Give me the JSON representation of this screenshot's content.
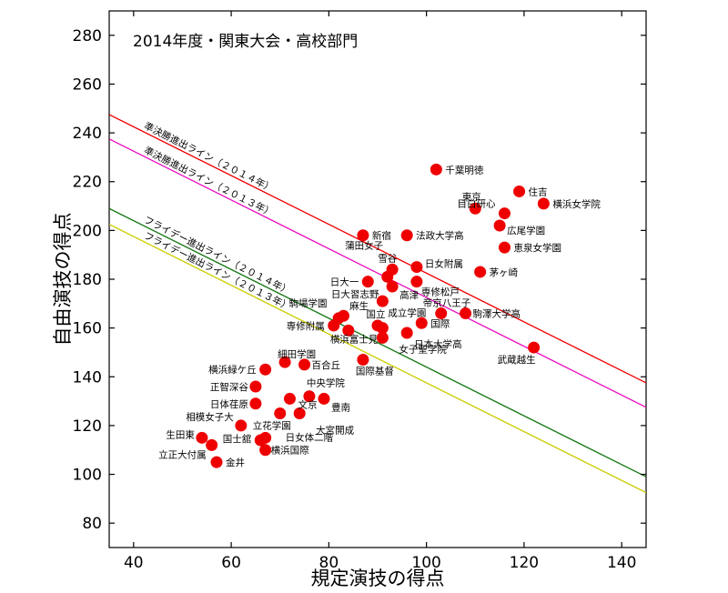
{
  "chart_data": {
    "type": "scatter",
    "title": "2014年度・関東大会・高校部門",
    "xlabel": "規定演技の得点",
    "ylabel": "自由演技の得点",
    "xlim": [
      35,
      145
    ],
    "ylim": [
      70,
      290
    ],
    "xticks": [
      40,
      60,
      80,
      100,
      120,
      140
    ],
    "yticks": [
      80,
      100,
      120,
      140,
      160,
      180,
      200,
      220,
      240,
      260,
      280
    ],
    "grid": false,
    "point_color": "#ee0000",
    "lines": [
      {
        "name": "準決勝進出ライン（２０１４年）",
        "color": "#ee0000",
        "x": [
          35,
          145
        ],
        "y": [
          247.5,
          137.5
        ]
      },
      {
        "name": "準決勝進出ライン（２０１３年）",
        "color": "#ee00bb",
        "x": [
          35,
          145
        ],
        "y": [
          237.5,
          127.5
        ]
      },
      {
        "name": "フライデー進出ライン（２０１４年）",
        "color": "#117711",
        "x": [
          35,
          145
        ],
        "y": [
          209,
          99
        ]
      },
      {
        "name": "フライデー進出ライン（２０１３年）",
        "color": "#cccc00",
        "x": [
          35,
          145
        ],
        "y": [
          202.5,
          92.5
        ]
      }
    ],
    "points": [
      {
        "label": "千葉明徳",
        "x": 102,
        "y": 225
      },
      {
        "label": "住吉",
        "x": 119,
        "y": 216
      },
      {
        "label": "横浜女学院",
        "x": 124,
        "y": 211
      },
      {
        "label": "東京",
        "x": 110,
        "y": 209
      },
      {
        "label": "目白研心",
        "x": 116,
        "y": 207
      },
      {
        "label": "広尾学園",
        "x": 115,
        "y": 202
      },
      {
        "label": "新宿",
        "x": 87,
        "y": 198
      },
      {
        "label": "法政大学高",
        "x": 96,
        "y": 198
      },
      {
        "label": "恵泉女学園",
        "x": 116,
        "y": 193
      },
      {
        "label": "蒲田女子",
        "x": 93,
        "y": 184
      },
      {
        "label": "雪谷",
        "x": 92,
        "y": 181
      },
      {
        "label": "日女附属",
        "x": 98,
        "y": 185
      },
      {
        "label": "茅ヶ崎",
        "x": 111,
        "y": 183
      },
      {
        "label": "日大一",
        "x": 88,
        "y": 179
      },
      {
        "label": "高津",
        "x": 93,
        "y": 177
      },
      {
        "label": "専修松戸",
        "x": 98,
        "y": 179
      },
      {
        "label": "日大習志野",
        "x": 91,
        "y": 171
      },
      {
        "label": "帝京八王子",
        "x": 103,
        "y": 166
      },
      {
        "label": "駒澤大学高",
        "x": 108,
        "y": 166
      },
      {
        "label": "駒場学園",
        "x": 83,
        "y": 165
      },
      {
        "label": "麻生",
        "x": 82,
        "y": 164
      },
      {
        "label": "国立",
        "x": 90,
        "y": 161
      },
      {
        "label": "成立学園",
        "x": 91,
        "y": 160
      },
      {
        "label": "国際",
        "x": 99,
        "y": 162
      },
      {
        "label": "専修附属",
        "x": 81,
        "y": 161
      },
      {
        "label": "横浜富士見",
        "x": 84,
        "y": 159
      },
      {
        "label": "日本大学高",
        "x": 96,
        "y": 158
      },
      {
        "label": "女子聖学院",
        "x": 91,
        "y": 156
      },
      {
        "label": "武蔵越生",
        "x": 122,
        "y": 152
      },
      {
        "label": "細田学園",
        "x": 71,
        "y": 146
      },
      {
        "label": "百合丘",
        "x": 75,
        "y": 145
      },
      {
        "label": "国際基督",
        "x": 87,
        "y": 147
      },
      {
        "label": "横浜緑ケ丘",
        "x": 67,
        "y": 143
      },
      {
        "label": "正智深谷",
        "x": 65,
        "y": 136
      },
      {
        "label": "中央学院",
        "x": 76,
        "y": 132
      },
      {
        "label": "日体荏原",
        "x": 65,
        "y": 129
      },
      {
        "label": "豊南",
        "x": 79,
        "y": 131
      },
      {
        "label": "文京",
        "x": 72,
        "y": 131
      },
      {
        "label": "大宮開成",
        "x": 74,
        "y": 125
      },
      {
        "label": "立花学園",
        "x": 70,
        "y": 125
      },
      {
        "label": "相模女子大",
        "x": 62,
        "y": 120
      },
      {
        "label": "生田東",
        "x": 54,
        "y": 115
      },
      {
        "label": "日女体二階",
        "x": 67,
        "y": 115
      },
      {
        "label": "国士舘",
        "x": 66,
        "y": 114
      },
      {
        "label": "立正大付属",
        "x": 56,
        "y": 112
      },
      {
        "label": "横浜国際",
        "x": 67,
        "y": 110
      },
      {
        "label": "金井",
        "x": 57,
        "y": 105
      }
    ]
  }
}
